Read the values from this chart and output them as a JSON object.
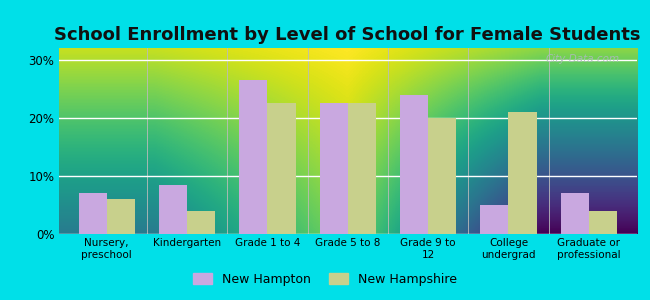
{
  "title": "School Enrollment by Level of School for Female Students",
  "categories": [
    "Nursery,\npreschool",
    "Kindergarten",
    "Grade 1 to 4",
    "Grade 5 to 8",
    "Grade 9 to\n12",
    "College\nundergrad",
    "Graduate or\nprofessional"
  ],
  "new_hampton": [
    7.0,
    8.5,
    26.5,
    22.5,
    24.0,
    5.0,
    7.0
  ],
  "new_hampshire": [
    6.0,
    4.0,
    22.5,
    22.5,
    20.0,
    21.0,
    4.0
  ],
  "bar_color_nh_city": "#c9a8e0",
  "bar_color_nh_state": "#c8d08c",
  "background_outer": "#00e0e8",
  "background_inner_top": "#f5faf0",
  "background_inner_bottom": "#d8efc0",
  "yticks": [
    0,
    10,
    20,
    30
  ],
  "ytick_labels": [
    "0%",
    "10%",
    "20%",
    "30%"
  ],
  "ylim": [
    0,
    32
  ],
  "legend_label_city": "New Hampton",
  "legend_label_state": "New Hampshire",
  "title_fontsize": 13,
  "watermark": "City-Data.com"
}
